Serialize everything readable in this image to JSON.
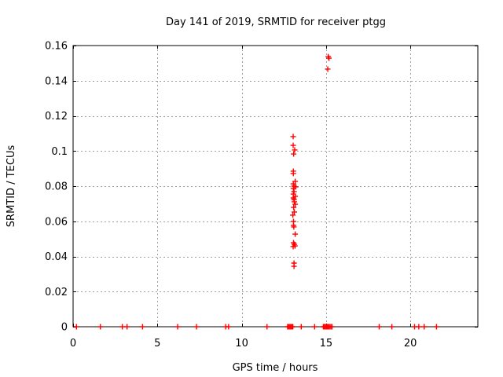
{
  "chart_data": {
    "type": "scatter",
    "title": "Day 141 of 2019, SRMTID for receiver ptgg",
    "xlabel": "GPS time / hours",
    "ylabel": "SRMTID / TECUs",
    "xlim": [
      0,
      24
    ],
    "ylim": [
      0,
      0.16
    ],
    "xticks": [
      0,
      5,
      10,
      15,
      20
    ],
    "xtick_labels": [
      "0",
      "5",
      "10",
      "15",
      "20"
    ],
    "yticks": [
      0,
      0.02,
      0.04,
      0.06,
      0.08,
      0.1,
      0.12,
      0.14,
      0.16
    ],
    "ytick_labels": [
      "0",
      "0.02",
      "0.04",
      "0.06",
      "0.08",
      "0.1",
      "0.12",
      "0.14",
      "0.16"
    ],
    "grid": "dashed",
    "grid_color": "#9e9e9e",
    "border_color": "#000000",
    "legend_position": "none",
    "marker": {
      "shape": "plus",
      "color": "#ff0000",
      "size": 7
    },
    "series": [
      {
        "name": "SRMTID",
        "points": [
          [
            13.05,
            0.1082
          ],
          [
            13.05,
            0.1032
          ],
          [
            13.14,
            0.1006
          ],
          [
            13.08,
            0.0983
          ],
          [
            13.06,
            0.0885
          ],
          [
            13.06,
            0.0872
          ],
          [
            13.17,
            0.0827
          ],
          [
            13.06,
            0.0813
          ],
          [
            13.1,
            0.08
          ],
          [
            13.2,
            0.0796
          ],
          [
            13.06,
            0.0787
          ],
          [
            13.1,
            0.0769
          ],
          [
            13.06,
            0.0755
          ],
          [
            13.17,
            0.0742
          ],
          [
            13.06,
            0.0733
          ],
          [
            13.1,
            0.0724
          ],
          [
            13.12,
            0.0711
          ],
          [
            13.17,
            0.0697
          ],
          [
            13.08,
            0.0679
          ],
          [
            13.12,
            0.0653
          ],
          [
            13.03,
            0.0635
          ],
          [
            13.07,
            0.0599
          ],
          [
            13.07,
            0.0577
          ],
          [
            13.09,
            0.0568
          ],
          [
            13.17,
            0.0527
          ],
          [
            13.07,
            0.0478
          ],
          [
            13.12,
            0.0469
          ],
          [
            13.16,
            0.046
          ],
          [
            13.05,
            0.0456
          ],
          [
            13.1,
            0.0362
          ],
          [
            13.1,
            0.0344
          ],
          [
            15.13,
            0.1537
          ],
          [
            15.17,
            0.1528
          ],
          [
            15.1,
            0.1466
          ],
          [
            0.2,
            0
          ],
          [
            1.62,
            0
          ],
          [
            2.92,
            0
          ],
          [
            3.2,
            0
          ],
          [
            4.12,
            0
          ],
          [
            6.2,
            0
          ],
          [
            7.32,
            0
          ],
          [
            9.05,
            0
          ],
          [
            9.22,
            0
          ],
          [
            11.5,
            0
          ],
          [
            12.72,
            0
          ],
          [
            12.78,
            0
          ],
          [
            12.85,
            0
          ],
          [
            12.91,
            0
          ],
          [
            12.97,
            0
          ],
          [
            13.03,
            0
          ],
          [
            13.53,
            0
          ],
          [
            14.32,
            0
          ],
          [
            14.84,
            0
          ],
          [
            14.9,
            0
          ],
          [
            14.96,
            0
          ],
          [
            15.02,
            0
          ],
          [
            15.08,
            0
          ],
          [
            15.14,
            0
          ],
          [
            15.2,
            0
          ],
          [
            15.28,
            0
          ],
          [
            15.35,
            0
          ],
          [
            18.15,
            0
          ],
          [
            18.9,
            0
          ],
          [
            20.25,
            0
          ],
          [
            20.5,
            0
          ],
          [
            20.82,
            0
          ],
          [
            21.55,
            0
          ]
        ]
      }
    ]
  }
}
